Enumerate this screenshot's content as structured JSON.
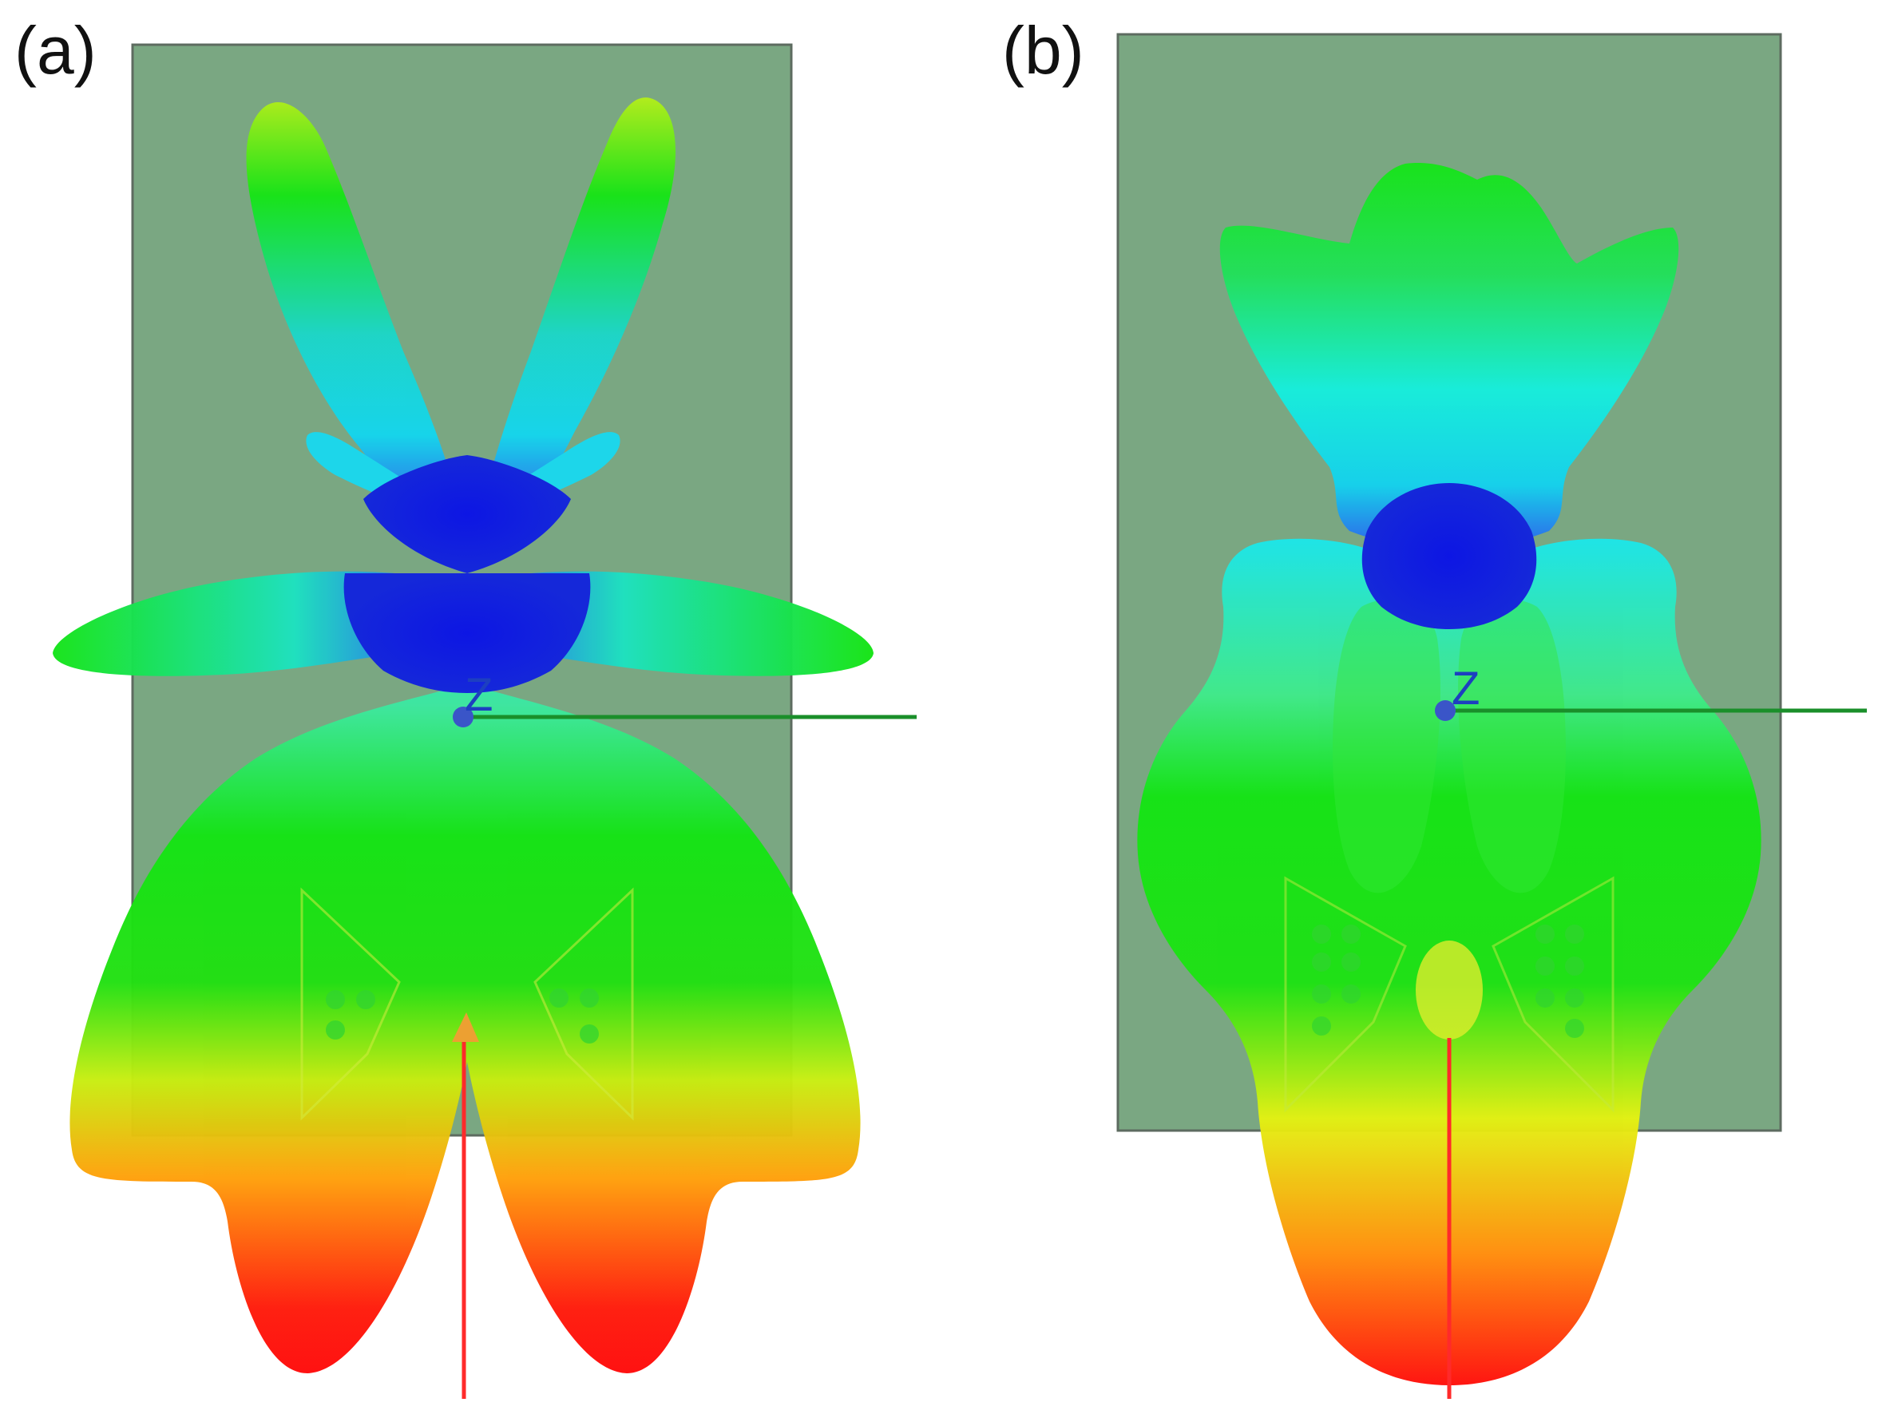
{
  "panels": [
    {
      "label": "(a)",
      "axis_label": "Z"
    },
    {
      "label": "(b)",
      "axis_label": "Z"
    }
  ],
  "colors": {
    "background": "#ffffff",
    "ground_plane": "#7aa782",
    "ground_plane_edge": "#5d6b60",
    "y_axis": "#1a8f2a",
    "x_axis": "#ff2a2a",
    "origin": "#3a55c8",
    "pattern_scale": [
      "#0a12e0",
      "#14e8ee",
      "#12e412",
      "#e8f212",
      "#ff9a0a",
      "#ff1010"
    ]
  }
}
